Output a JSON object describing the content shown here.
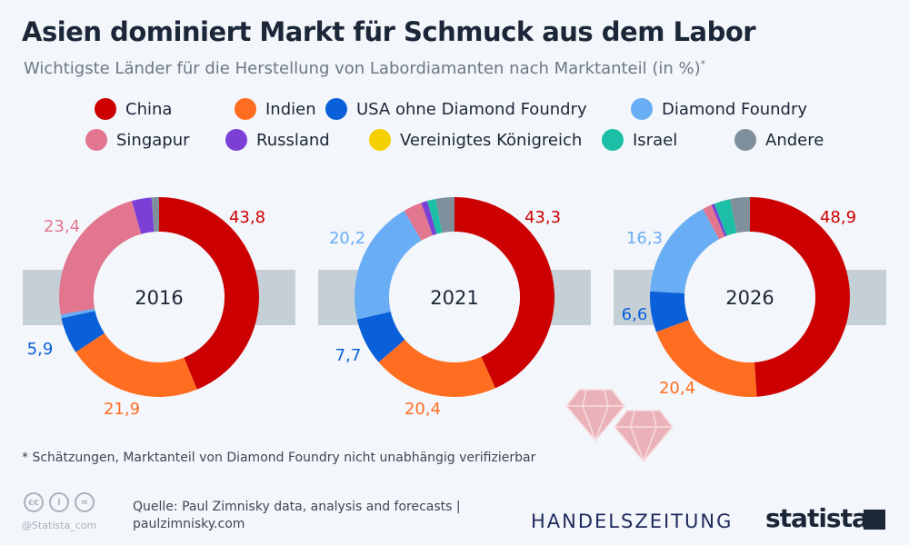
{
  "title": "Asien dominiert Markt für Schmuck aus dem Labor",
  "subtitle": "Wichtigste Länder für die Herstellung von Labordiamanten nach Marktanteil (in %)",
  "subtitle_mark": "*",
  "footnote": "* Schätzungen, Marktanteil von Diamond Foundry nicht unabhängig verifizierbar",
  "source_line1": "Quelle: Paul Zimnisky data, analysis and forecasts |",
  "source_line2": "paulzimnisky.com",
  "handle": "@Statista_com",
  "partner_logo": "HANDELSZEITUNG",
  "brand_logo": "statista",
  "chart_data": {
    "type": "pie",
    "variant": "donut",
    "unit": "%",
    "legend_placement": "top",
    "series": [
      {
        "name": "China",
        "color": "#cc0000"
      },
      {
        "name": "Indien",
        "color": "#ff6d21"
      },
      {
        "name": "USA ohne Diamond Foundry",
        "color": "#0a60d8"
      },
      {
        "name": "Diamond Foundry",
        "color": "#69adf4"
      },
      {
        "name": "Singapur",
        "color": "#e3768f"
      },
      {
        "name": "Russland",
        "color": "#7b3fd6"
      },
      {
        "name": "Vereinigtes Königreich",
        "color": "#f5d000"
      },
      {
        "name": "Israel",
        "color": "#1cbfa5"
      },
      {
        "name": "Andere",
        "color": "#7f8f9c"
      }
    ],
    "charts": [
      {
        "label": "2016",
        "values": [
          43.8,
          21.9,
          5.9,
          0.6,
          23.4,
          3.2,
          0,
          0,
          1.2
        ],
        "labels": [
          "43,8",
          "21,9",
          "5,9",
          "",
          "23,4",
          "",
          "",
          "",
          ""
        ]
      },
      {
        "label": "2021",
        "values": [
          43.3,
          20.4,
          7.7,
          20.2,
          3.0,
          1.0,
          0,
          1.4,
          3.0
        ],
        "labels": [
          "43,3",
          "20,4",
          "7,7",
          "20,2",
          "",
          "",
          "",
          "",
          ""
        ]
      },
      {
        "label": "2026",
        "values": [
          48.9,
          20.4,
          6.6,
          16.3,
          1.5,
          0.5,
          0,
          2.6,
          3.2
        ],
        "labels": [
          "48,9",
          "20,4",
          "6,6",
          "16,3",
          "",
          "",
          "",
          "",
          ""
        ]
      }
    ]
  }
}
